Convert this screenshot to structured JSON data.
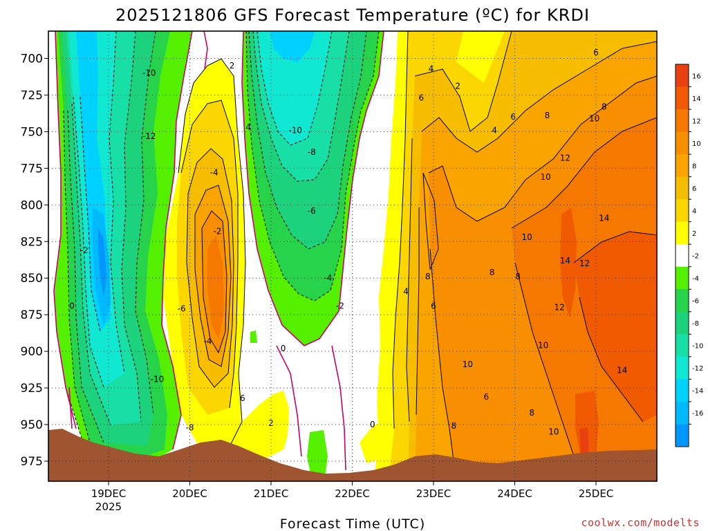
{
  "chart_data": {
    "type": "heatmap",
    "title": "2025121806 GFS Forecast Temperature (ºC) for KRDI",
    "xlabel": "Forecast Time (UTC)",
    "ylabel": "",
    "credit": "coolwx.com/modelts",
    "y_ticks": [
      700,
      725,
      750,
      775,
      800,
      825,
      850,
      875,
      900,
      925,
      950,
      975
    ],
    "x_ticks": [
      "19DEC",
      "20DEC",
      "21DEC",
      "22DEC",
      "23DEC",
      "24DEC",
      "25DEC"
    ],
    "x_year": "2025",
    "colorbar": {
      "labels": [
        "16",
        "14",
        "12",
        "10",
        "8",
        "6",
        "4",
        "2",
        "-2",
        "-4",
        "-6",
        "-8",
        "-10",
        "-12",
        "-14",
        "-16"
      ],
      "colors": [
        "#e84010",
        "#f05a00",
        "#f57800",
        "#f78f00",
        "#faa400",
        "#f7bd00",
        "#fbd600",
        "#ffff00",
        "#ffffff",
        "#55ef00",
        "#27d34a",
        "#1cd27c",
        "#18dfa6",
        "#10e8d2",
        "#00d2ff",
        "#00b9ff",
        "#0097ff"
      ]
    },
    "contour_labels": [
      {
        "t": "-10",
        "x": 0.5,
        "p": 710
      },
      {
        "t": "-12",
        "x": 0.5,
        "p": 753
      },
      {
        "t": "-4",
        "x": 1.3,
        "p": 778
      },
      {
        "t": "-2",
        "x": 1.34,
        "p": 818
      },
      {
        "t": "-2",
        "x": -0.3,
        "p": 831
      },
      {
        "t": "0",
        "x": -0.45,
        "p": 869
      },
      {
        "t": "-6",
        "x": 0.9,
        "p": 871
      },
      {
        "t": "-4",
        "x": 1.22,
        "p": 893
      },
      {
        "t": "-10",
        "x": 0.6,
        "p": 919
      },
      {
        "t": "-8",
        "x": 1.0,
        "p": 952
      },
      {
        "t": "2",
        "x": 1.52,
        "p": 705
      },
      {
        "t": "4",
        "x": 1.72,
        "p": 747
      },
      {
        "t": "6",
        "x": 1.65,
        "p": 932
      },
      {
        "t": "-10",
        "x": 2.3,
        "p": 749
      },
      {
        "t": "-8",
        "x": 2.5,
        "p": 764
      },
      {
        "t": "-6",
        "x": 2.5,
        "p": 804
      },
      {
        "t": "-4",
        "x": 2.7,
        "p": 850
      },
      {
        "t": "-2",
        "x": 2.85,
        "p": 869
      },
      {
        "t": "0",
        "x": 2.15,
        "p": 898
      },
      {
        "t": "2",
        "x": 2.0,
        "p": 949
      },
      {
        "t": "0",
        "x": 3.25,
        "p": 950
      },
      {
        "t": "4",
        "x": 3.97,
        "p": 707
      },
      {
        "t": "2",
        "x": 4.3,
        "p": 719
      },
      {
        "t": "6",
        "x": 3.85,
        "p": 727
      },
      {
        "t": "4",
        "x": 4.75,
        "p": 749
      },
      {
        "t": "6",
        "x": 4.98,
        "p": 740
      },
      {
        "t": "8",
        "x": 5.4,
        "p": 739
      },
      {
        "t": "6",
        "x": 6.0,
        "p": 696
      },
      {
        "t": "8",
        "x": 6.1,
        "p": 733
      },
      {
        "t": "10",
        "x": 5.98,
        "p": 741
      },
      {
        "t": "12",
        "x": 5.62,
        "p": 768
      },
      {
        "t": "10",
        "x": 5.38,
        "p": 781
      },
      {
        "t": "10",
        "x": 5.15,
        "p": 822
      },
      {
        "t": "14",
        "x": 6.1,
        "p": 809
      },
      {
        "t": "14",
        "x": 5.62,
        "p": 838
      },
      {
        "t": "12",
        "x": 5.86,
        "p": 840
      },
      {
        "t": "12",
        "x": 5.55,
        "p": 870
      },
      {
        "t": "8",
        "x": 3.93,
        "p": 849
      },
      {
        "t": "6",
        "x": 4.0,
        "p": 869
      },
      {
        "t": "4",
        "x": 3.66,
        "p": 859
      },
      {
        "t": "8",
        "x": 4.72,
        "p": 846
      },
      {
        "t": "8",
        "x": 5.04,
        "p": 849
      },
      {
        "t": "10",
        "x": 4.42,
        "p": 909
      },
      {
        "t": "10",
        "x": 5.35,
        "p": 896
      },
      {
        "t": "6",
        "x": 4.65,
        "p": 931
      },
      {
        "t": "8",
        "x": 5.21,
        "p": 942
      },
      {
        "t": "8",
        "x": 4.25,
        "p": 951
      },
      {
        "t": "10",
        "x": 5.48,
        "p": 955
      },
      {
        "t": "14",
        "x": 6.32,
        "p": 913
      }
    ]
  }
}
